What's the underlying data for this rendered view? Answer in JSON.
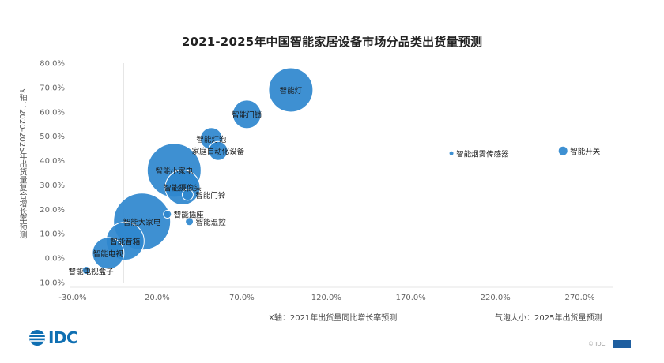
{
  "chart_data": {
    "type": "scatter",
    "title": "2021-2025年中国智能家居设备市场分品类出货量预测",
    "xlabel": "X轴：2021年出货量同比增长率预测",
    "ylabel": "Y轴：2020-2025年出货量复合增长率预测",
    "size_label": "气泡大小：2025年出货量预测",
    "xlim": [
      -30,
      280
    ],
    "ylim": [
      -10,
      80
    ],
    "x_ticks": [
      "-30.0%",
      "20.0%",
      "70.0%",
      "120.0%",
      "170.0%",
      "220.0%",
      "270.0%"
    ],
    "x_tick_values": [
      -30,
      20,
      70,
      120,
      170,
      220,
      270
    ],
    "y_ticks": [
      "80.0%",
      "70.0%",
      "60.0%",
      "50.0%",
      "40.0%",
      "30.0%",
      "20.0%",
      "10.0%",
      "0.0%",
      "-10.0%"
    ],
    "y_tick_values": [
      80,
      70,
      60,
      50,
      40,
      30,
      20,
      10,
      0,
      -10
    ],
    "grid": false,
    "bubble_color": "#2f88cf",
    "points": [
      {
        "label": "智能灯",
        "x": 99,
        "y": 69,
        "size": 28,
        "label_pos": "center"
      },
      {
        "label": "智能门锁",
        "x": 73,
        "y": 59,
        "size": 18,
        "label_pos": "center"
      },
      {
        "label": "智能灯泡",
        "x": 52,
        "y": 49,
        "size": 14,
        "label_pos": "center"
      },
      {
        "label": "家庭自动化设备",
        "x": 56,
        "y": 44,
        "size": 12,
        "label_pos": "center"
      },
      {
        "label": "智能烟雾传感器",
        "x": 194,
        "y": 43,
        "size": 3,
        "label_pos": "right"
      },
      {
        "label": "智能开关",
        "x": 260,
        "y": 44,
        "size": 6,
        "label_pos": "right"
      },
      {
        "label": "智能小家电",
        "x": 30,
        "y": 36,
        "size": 34,
        "label_pos": "center"
      },
      {
        "label": "智能摄像头",
        "x": 35,
        "y": 29,
        "size": 22,
        "label_pos": "center"
      },
      {
        "label": "智能门铃",
        "x": 38,
        "y": 26,
        "size": 7,
        "label_pos": "right"
      },
      {
        "label": "智能插座",
        "x": 26,
        "y": 18,
        "size": 5,
        "label_pos": "right"
      },
      {
        "label": "智能温控",
        "x": 39,
        "y": 15,
        "size": 5,
        "label_pos": "right"
      },
      {
        "label": "智能大家电",
        "x": 11,
        "y": 15,
        "size": 36,
        "label_pos": "center"
      },
      {
        "label": "智能音箱",
        "x": 1,
        "y": 7,
        "size": 24,
        "label_pos": "center"
      },
      {
        "label": "智能电视",
        "x": -9,
        "y": 2,
        "size": 20,
        "label_pos": "center"
      },
      {
        "label": "智能电视盒子",
        "x": -22,
        "y": -5,
        "size": 5,
        "label_pos": "below"
      }
    ]
  },
  "footer": {
    "logo": "IDC",
    "copyright": "© IDC"
  }
}
